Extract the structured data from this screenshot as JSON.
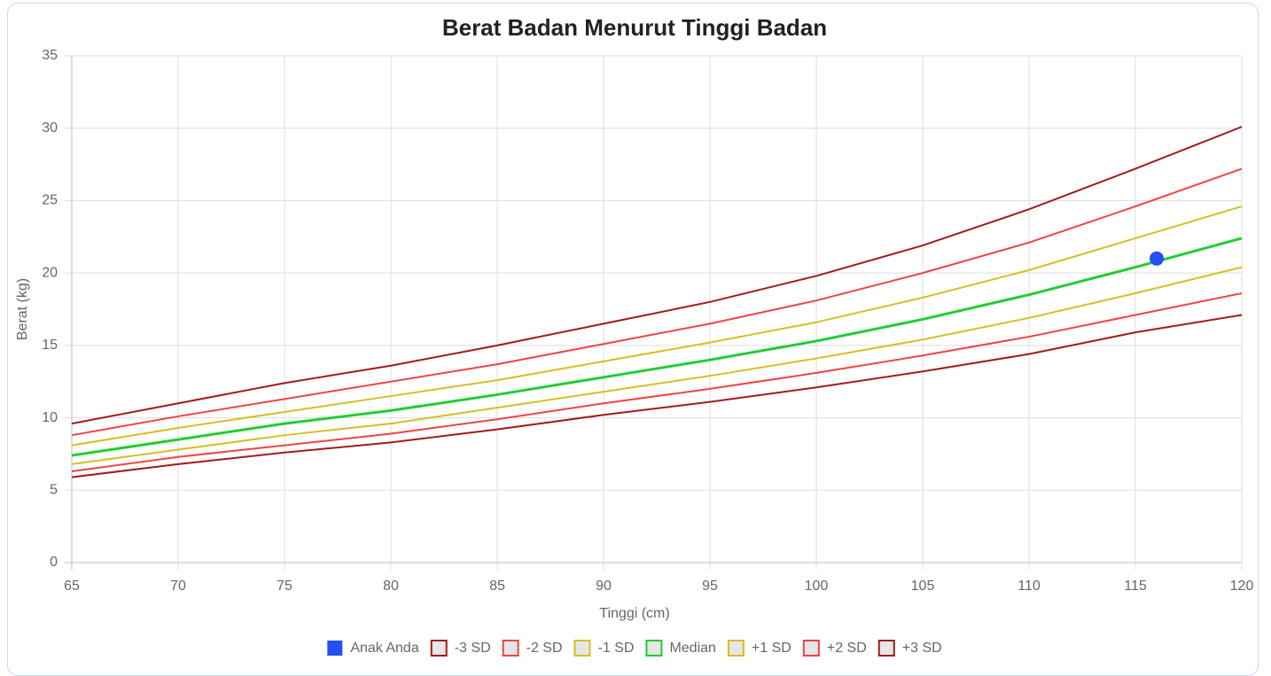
{
  "chart_data": {
    "type": "line",
    "title": "Berat Badan Menurut Tinggi Badan",
    "x_label": "Tinggi (cm)",
    "y_label": "Berat (kg)",
    "x": [
      65,
      70,
      75,
      80,
      85,
      90,
      95,
      100,
      105,
      110,
      115,
      120
    ],
    "series": [
      {
        "name": "Anak Anda",
        "type": "scatter",
        "color": "#2250f4",
        "x": [
          116
        ],
        "values": [
          21.0
        ]
      },
      {
        "name": "-3 SD",
        "color": "#a11b1b",
        "values": [
          5.9,
          6.8,
          7.6,
          8.3,
          9.2,
          10.2,
          11.1,
          12.1,
          13.2,
          14.4,
          15.9,
          17.1
        ]
      },
      {
        "name": "-2 SD",
        "color": "#ee4444",
        "values": [
          6.3,
          7.3,
          8.1,
          8.9,
          9.9,
          11.0,
          12.0,
          13.1,
          14.3,
          15.6,
          17.1,
          18.6
        ]
      },
      {
        "name": "-1 SD",
        "color": "#d4c024",
        "values": [
          6.8,
          7.8,
          8.8,
          9.6,
          10.7,
          11.8,
          12.9,
          14.1,
          15.4,
          16.9,
          18.6,
          20.4
        ]
      },
      {
        "name": "Median",
        "color": "#22cc33",
        "width": 3,
        "values": [
          7.4,
          8.5,
          9.6,
          10.5,
          11.6,
          12.8,
          14.0,
          15.3,
          16.8,
          18.5,
          20.4,
          22.4
        ]
      },
      {
        "name": "+1 SD",
        "color": "#d4c024",
        "values": [
          8.1,
          9.3,
          10.4,
          11.5,
          12.6,
          13.9,
          15.2,
          16.6,
          18.3,
          20.2,
          22.4,
          24.6
        ]
      },
      {
        "name": "+2 SD",
        "color": "#ee4444",
        "values": [
          8.8,
          10.1,
          11.3,
          12.5,
          13.7,
          15.1,
          16.5,
          18.1,
          20.0,
          22.1,
          24.6,
          27.2
        ]
      },
      {
        "name": "+3 SD",
        "color": "#a11b1b",
        "values": [
          9.6,
          11.0,
          12.4,
          13.6,
          15.0,
          16.5,
          18.0,
          19.8,
          21.9,
          24.4,
          27.2,
          30.1
        ]
      }
    ],
    "xlim": [
      65,
      120
    ],
    "xticks": [
      65,
      70,
      75,
      80,
      85,
      90,
      95,
      100,
      105,
      110,
      115,
      120
    ],
    "ylim": [
      0,
      35
    ],
    "yticks": [
      0,
      5,
      10,
      15,
      20,
      25,
      30,
      35
    ],
    "grid": true,
    "legend": "bottom"
  }
}
